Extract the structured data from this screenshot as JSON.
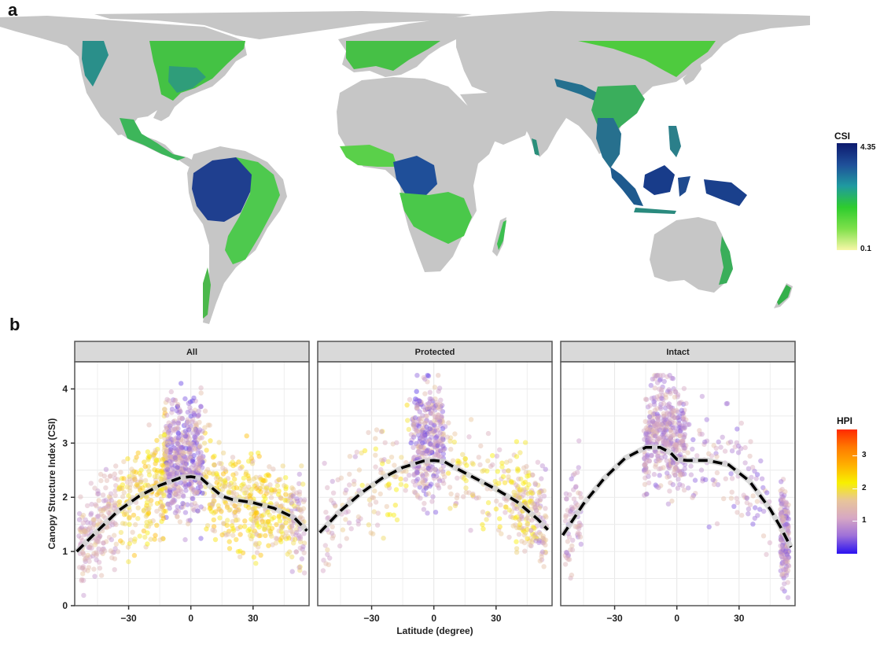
{
  "figure": {
    "panel_a_label": "a",
    "panel_b_label": "b"
  },
  "map": {
    "legend_title": "CSI",
    "legend_max_label": "4.35",
    "legend_min_label": "0.1",
    "legend_colors": [
      "#0d1a6e",
      "#1f4f99",
      "#1f9aa0",
      "#2ecc2e",
      "#7ee04a",
      "#f7f7a8"
    ],
    "land_color": "#c6c6c6",
    "forest_colors": [
      "#1b3c8c",
      "#24698f",
      "#2aa06a",
      "#35c935",
      "#7fdd4c"
    ]
  },
  "chart_data": {
    "type": "scatter",
    "title": "",
    "xlabel": "Latitude (degree)",
    "ylabel": "Canopy Structure Index (CSI)",
    "xlim": [
      -56,
      57
    ],
    "ylim": [
      0,
      4.5
    ],
    "xticks": [
      -30,
      0,
      30
    ],
    "xtick_labels": [
      "−30",
      "0",
      "30"
    ],
    "yticks": [
      0,
      1,
      2,
      3,
      4
    ],
    "ytick_labels": [
      "0",
      "1",
      "2",
      "3",
      "4"
    ],
    "grid": true,
    "legend": {
      "title": "HPI",
      "position": "right",
      "ticks": [
        1,
        2,
        3
      ],
      "tick_labels": [
        "1",
        "2",
        "3"
      ],
      "range": [
        0,
        3.8
      ],
      "colors": [
        "#2a12f0",
        "#9d6fd9",
        "#d6a7c4",
        "#e8c59a",
        "#f8f000",
        "#ffb000",
        "#ff7a00",
        "#ff2a00"
      ]
    },
    "panels": [
      {
        "name": "All",
        "trend": {
          "x": [
            -55,
            -45,
            -35,
            -25,
            -15,
            -5,
            0,
            5,
            10,
            15,
            20,
            30,
            40,
            50,
            56
          ],
          "y": [
            1.0,
            1.38,
            1.75,
            2.02,
            2.22,
            2.36,
            2.38,
            2.35,
            2.18,
            2.02,
            1.96,
            1.9,
            1.8,
            1.62,
            1.38
          ]
        }
      },
      {
        "name": "Protected",
        "trend": {
          "x": [
            -55,
            -45,
            -35,
            -25,
            -15,
            -5,
            0,
            5,
            10,
            20,
            30,
            40,
            50,
            55
          ],
          "y": [
            1.35,
            1.75,
            2.08,
            2.35,
            2.55,
            2.67,
            2.68,
            2.66,
            2.55,
            2.35,
            2.15,
            1.92,
            1.6,
            1.4
          ]
        }
      },
      {
        "name": "Intact",
        "trend": {
          "x": [
            -55,
            -45,
            -35,
            -25,
            -15,
            -8,
            -3,
            0,
            5,
            15,
            25,
            35,
            45,
            50,
            55
          ],
          "y": [
            1.3,
            1.88,
            2.35,
            2.72,
            2.92,
            2.92,
            2.82,
            2.7,
            2.68,
            2.68,
            2.6,
            2.3,
            1.78,
            1.45,
            1.08
          ]
        }
      }
    ]
  }
}
